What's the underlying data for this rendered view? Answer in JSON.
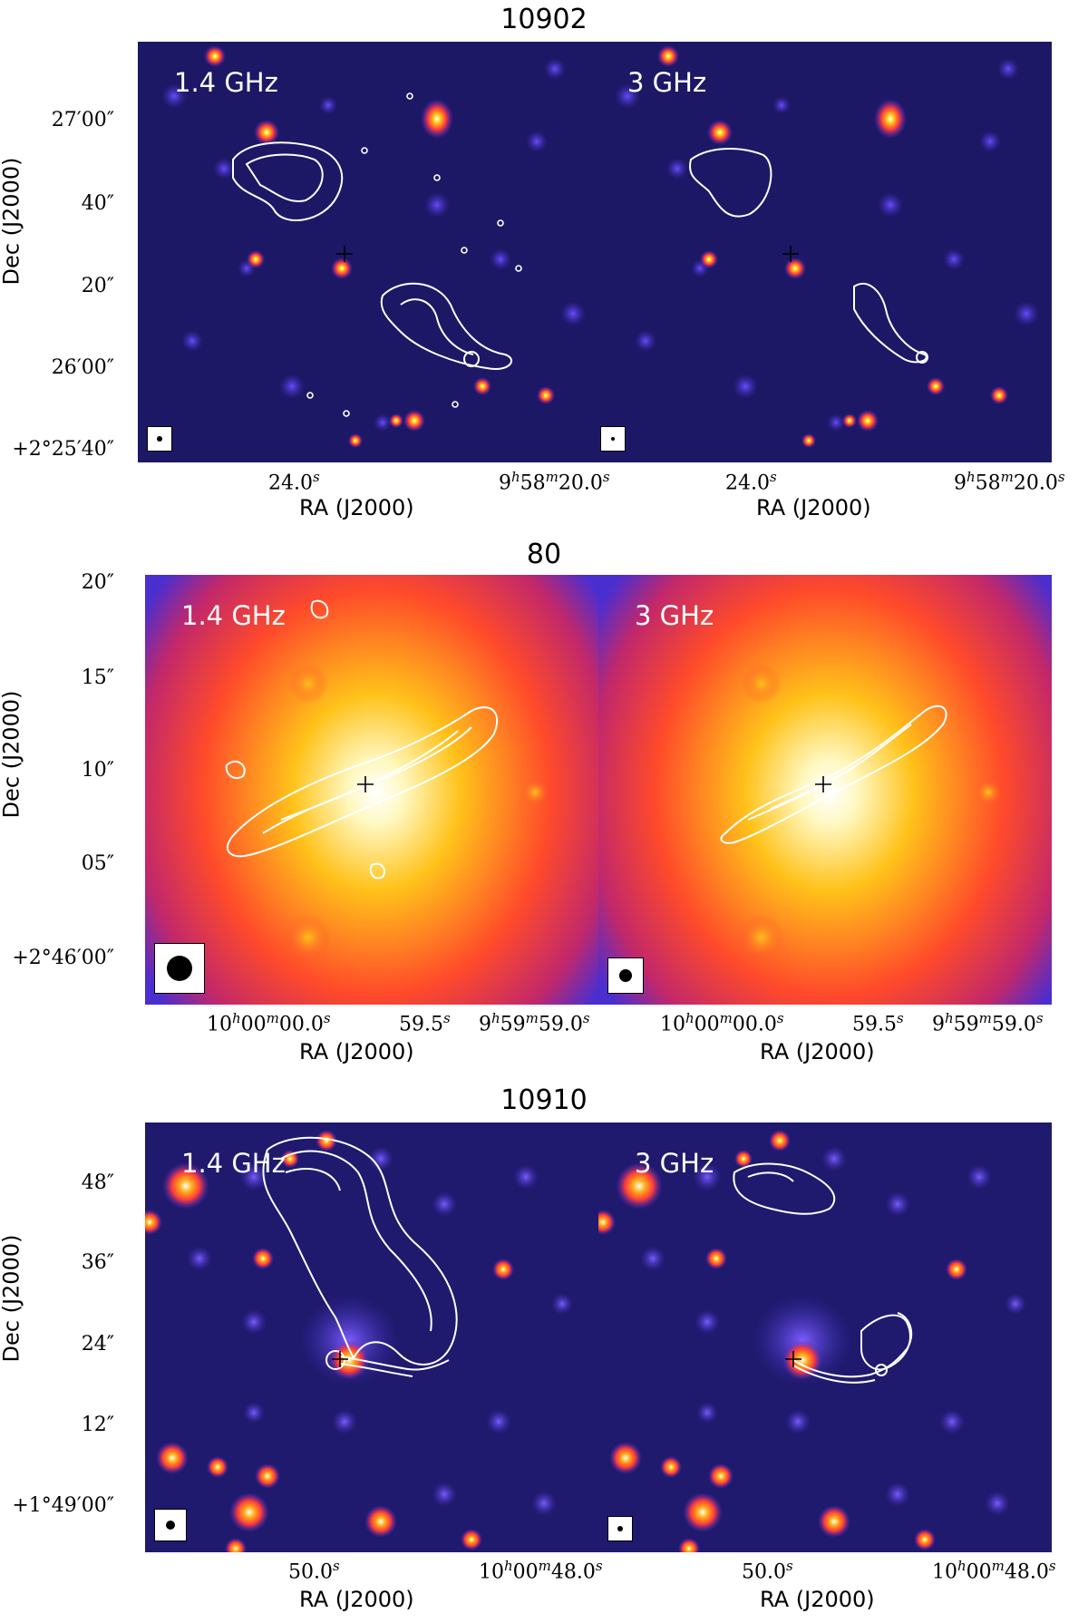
{
  "figure": {
    "blocks": [
      {
        "id": "10902",
        "title": "10902",
        "ylabel": "Dec (J2000)",
        "yticks": [
          "27′00″",
          "40″",
          "20″",
          "26′00″",
          "+2°25′40″"
        ],
        "panels": [
          {
            "freq": "1.4 GHz",
            "xlabel": "RA (J2000)",
            "xticks": [
              "24.0s",
              "9h58m20.0s"
            ]
          },
          {
            "freq": "3 GHz",
            "xlabel": "RA (J2000)",
            "xticks": [
              "24.0s",
              "9h58m20.0s"
            ]
          }
        ]
      },
      {
        "id": "80",
        "title": "80",
        "ylabel": "Dec (J2000)",
        "yticks": [
          "20″",
          "15″",
          "10″",
          "05″",
          "+2°46′00″"
        ],
        "panels": [
          {
            "freq": "1.4 GHz",
            "xlabel": "RA (J2000)",
            "xticks": [
              "10h00m00.0s",
              "59.5s",
              "9h59m59.0s"
            ]
          },
          {
            "freq": "3 GHz",
            "xlabel": "RA (J2000)",
            "xticks": [
              "10h00m00.0s",
              "59.5s",
              "9h59m59.0s"
            ]
          }
        ]
      },
      {
        "id": "10910",
        "title": "10910",
        "ylabel": "Dec (J2000)",
        "yticks": [
          "48″",
          "36″",
          "24″",
          "12″",
          "+1°49′00″"
        ],
        "panels": [
          {
            "freq": "1.4 GHz",
            "xlabel": "RA (J2000)",
            "xticks": [
              "50.0s",
              "10h00m48.0s"
            ]
          },
          {
            "freq": "3 GHz",
            "xlabel": "RA (J2000)",
            "xticks": [
              "50.0s",
              "10h00m48.0s"
            ]
          }
        ]
      }
    ],
    "colors": {
      "background_dark": "#1c1866",
      "hot_core": "#ffffff",
      "contour": "#ffffff"
    }
  }
}
